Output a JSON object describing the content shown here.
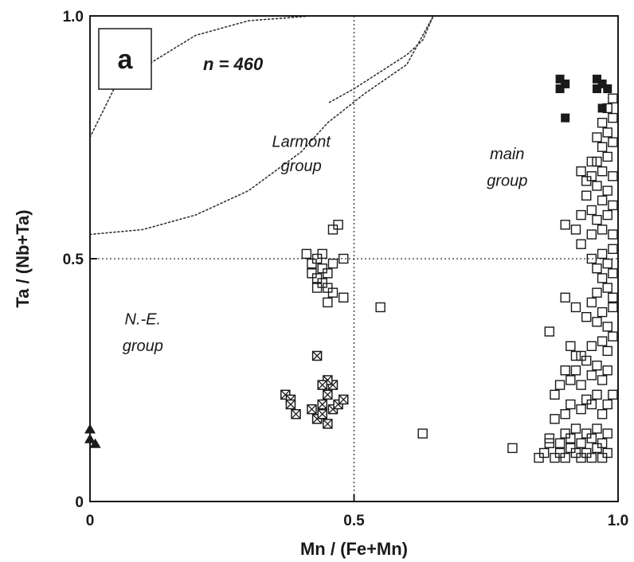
{
  "chart_data": {
    "type": "scatter",
    "panel_label": "a",
    "n_label": "n = 460",
    "xlabel": "Mn / (Fe+Mn)",
    "ylabel": "Ta / (Nb+Ta)",
    "xlim": [
      0,
      1.0
    ],
    "ylim": [
      0,
      1.0
    ],
    "x_ticks": [
      "0",
      "0.5",
      "1.0"
    ],
    "y_ticks": [
      "0",
      "0.5",
      "1.0"
    ],
    "grid": false,
    "reference_lines": [
      {
        "axis": "x",
        "value": 0.5,
        "style": "dotted"
      },
      {
        "axis": "y",
        "value": 0.5,
        "style": "dotted"
      }
    ],
    "annotations": [
      {
        "text": "Larmont",
        "x": 0.4,
        "y": 0.73
      },
      {
        "text": "group",
        "x": 0.4,
        "y": 0.68
      },
      {
        "text": "main",
        "x": 0.79,
        "y": 0.705
      },
      {
        "text": "group",
        "x": 0.79,
        "y": 0.65
      },
      {
        "text": "N.-E.",
        "x": 0.1,
        "y": 0.365
      },
      {
        "text": "group",
        "x": 0.1,
        "y": 0.31
      }
    ],
    "boundaries": [
      {
        "name": "outer",
        "points": [
          [
            0.0,
            0.75
          ],
          [
            0.05,
            0.86
          ],
          [
            0.2,
            0.96
          ],
          [
            0.3,
            0.99
          ],
          [
            0.42,
            1.0
          ],
          [
            0.65,
            1.0
          ],
          [
            0.63,
            0.95
          ],
          [
            0.6,
            0.92
          ],
          [
            0.5,
            0.85
          ],
          [
            0.45,
            0.82
          ]
        ]
      },
      {
        "name": "inner",
        "points": [
          [
            0.0,
            0.55
          ],
          [
            0.1,
            0.56
          ],
          [
            0.2,
            0.59
          ],
          [
            0.3,
            0.64
          ],
          [
            0.4,
            0.72
          ],
          [
            0.45,
            0.78
          ],
          [
            0.52,
            0.84
          ],
          [
            0.6,
            0.9
          ],
          [
            0.62,
            0.94
          ],
          [
            0.65,
            1.0
          ]
        ]
      }
    ],
    "series": [
      {
        "marker": "triangle-filled",
        "points": [
          [
            0.0,
            0.15
          ],
          [
            0.0,
            0.13
          ],
          [
            0.01,
            0.12
          ]
        ]
      },
      {
        "marker": "square-filled",
        "points": [
          [
            0.89,
            0.87
          ],
          [
            0.9,
            0.86
          ],
          [
            0.89,
            0.85
          ],
          [
            0.9,
            0.79
          ],
          [
            0.96,
            0.87
          ],
          [
            0.97,
            0.86
          ],
          [
            0.96,
            0.85
          ],
          [
            0.98,
            0.85
          ],
          [
            0.97,
            0.81
          ]
        ]
      },
      {
        "marker": "square-crossed",
        "points": [
          [
            0.37,
            0.22
          ],
          [
            0.38,
            0.21
          ],
          [
            0.39,
            0.18
          ],
          [
            0.42,
            0.19
          ],
          [
            0.43,
            0.17
          ],
          [
            0.44,
            0.18
          ],
          [
            0.45,
            0.16
          ],
          [
            0.44,
            0.2
          ],
          [
            0.45,
            0.22
          ],
          [
            0.46,
            0.19
          ],
          [
            0.47,
            0.2
          ],
          [
            0.48,
            0.21
          ],
          [
            0.46,
            0.24
          ],
          [
            0.45,
            0.25
          ],
          [
            0.43,
            0.3
          ],
          [
            0.38,
            0.2
          ],
          [
            0.44,
            0.24
          ]
        ]
      },
      {
        "marker": "square-open",
        "points": [
          [
            0.41,
            0.51
          ],
          [
            0.42,
            0.49
          ],
          [
            0.43,
            0.5
          ],
          [
            0.42,
            0.47
          ],
          [
            0.43,
            0.46
          ],
          [
            0.44,
            0.48
          ],
          [
            0.45,
            0.47
          ],
          [
            0.44,
            0.45
          ],
          [
            0.45,
            0.44
          ],
          [
            0.46,
            0.43
          ],
          [
            0.45,
            0.41
          ],
          [
            0.48,
            0.5
          ],
          [
            0.48,
            0.42
          ],
          [
            0.46,
            0.56
          ],
          [
            0.47,
            0.57
          ],
          [
            0.44,
            0.51
          ],
          [
            0.46,
            0.49
          ],
          [
            0.43,
            0.44
          ],
          [
            0.55,
            0.4
          ],
          [
            0.63,
            0.14
          ],
          [
            0.8,
            0.11
          ],
          [
            0.85,
            0.09
          ],
          [
            0.86,
            0.1
          ],
          [
            0.87,
            0.12
          ],
          [
            0.88,
            0.09
          ],
          [
            0.89,
            0.1
          ],
          [
            0.9,
            0.09
          ],
          [
            0.91,
            0.11
          ],
          [
            0.92,
            0.1
          ],
          [
            0.93,
            0.09
          ],
          [
            0.94,
            0.1
          ],
          [
            0.95,
            0.09
          ],
          [
            0.96,
            0.11
          ],
          [
            0.97,
            0.09
          ],
          [
            0.98,
            0.1
          ],
          [
            0.87,
            0.13
          ],
          [
            0.89,
            0.12
          ],
          [
            0.91,
            0.13
          ],
          [
            0.93,
            0.12
          ],
          [
            0.95,
            0.13
          ],
          [
            0.97,
            0.12
          ],
          [
            0.9,
            0.14
          ],
          [
            0.92,
            0.15
          ],
          [
            0.94,
            0.14
          ],
          [
            0.96,
            0.15
          ],
          [
            0.98,
            0.14
          ],
          [
            0.88,
            0.17
          ],
          [
            0.9,
            0.18
          ],
          [
            0.91,
            0.2
          ],
          [
            0.93,
            0.19
          ],
          [
            0.94,
            0.21
          ],
          [
            0.95,
            0.2
          ],
          [
            0.96,
            0.22
          ],
          [
            0.97,
            0.18
          ],
          [
            0.98,
            0.2
          ],
          [
            0.99,
            0.22
          ],
          [
            0.88,
            0.22
          ],
          [
            0.89,
            0.24
          ],
          [
            0.91,
            0.25
          ],
          [
            0.93,
            0.24
          ],
          [
            0.95,
            0.26
          ],
          [
            0.97,
            0.25
          ],
          [
            0.98,
            0.27
          ],
          [
            0.96,
            0.28
          ],
          [
            0.94,
            0.29
          ],
          [
            0.92,
            0.3
          ],
          [
            0.9,
            0.27
          ],
          [
            0.92,
            0.27
          ],
          [
            0.87,
            0.35
          ],
          [
            0.91,
            0.32
          ],
          [
            0.93,
            0.3
          ],
          [
            0.95,
            0.32
          ],
          [
            0.97,
            0.33
          ],
          [
            0.98,
            0.31
          ],
          [
            0.99,
            0.34
          ],
          [
            0.9,
            0.42
          ],
          [
            0.92,
            0.4
          ],
          [
            0.94,
            0.38
          ],
          [
            0.96,
            0.37
          ],
          [
            0.97,
            0.39
          ],
          [
            0.98,
            0.36
          ],
          [
            0.99,
            0.4
          ],
          [
            0.95,
            0.41
          ],
          [
            0.96,
            0.43
          ],
          [
            0.98,
            0.44
          ],
          [
            0.99,
            0.42
          ],
          [
            0.97,
            0.46
          ],
          [
            0.96,
            0.48
          ],
          [
            0.98,
            0.49
          ],
          [
            0.99,
            0.47
          ],
          [
            0.95,
            0.5
          ],
          [
            0.97,
            0.51
          ],
          [
            0.99,
            0.52
          ],
          [
            0.93,
            0.53
          ],
          [
            0.95,
            0.55
          ],
          [
            0.97,
            0.56
          ],
          [
            0.99,
            0.55
          ],
          [
            0.96,
            0.58
          ],
          [
            0.98,
            0.59
          ],
          [
            0.95,
            0.6
          ],
          [
            0.97,
            0.62
          ],
          [
            0.99,
            0.61
          ],
          [
            0.94,
            0.63
          ],
          [
            0.96,
            0.65
          ],
          [
            0.98,
            0.64
          ],
          [
            0.95,
            0.67
          ],
          [
            0.97,
            0.68
          ],
          [
            0.99,
            0.67
          ],
          [
            0.96,
            0.7
          ],
          [
            0.98,
            0.71
          ],
          [
            0.97,
            0.73
          ],
          [
            0.99,
            0.74
          ],
          [
            0.98,
            0.76
          ],
          [
            0.97,
            0.78
          ],
          [
            0.99,
            0.79
          ],
          [
            0.98,
            0.81
          ],
          [
            0.99,
            0.83
          ],
          [
            0.92,
            0.56
          ],
          [
            0.9,
            0.57
          ],
          [
            0.93,
            0.59
          ],
          [
            0.94,
            0.66
          ],
          [
            0.93,
            0.68
          ],
          [
            0.95,
            0.7
          ],
          [
            0.96,
            0.75
          ]
        ]
      }
    ]
  }
}
